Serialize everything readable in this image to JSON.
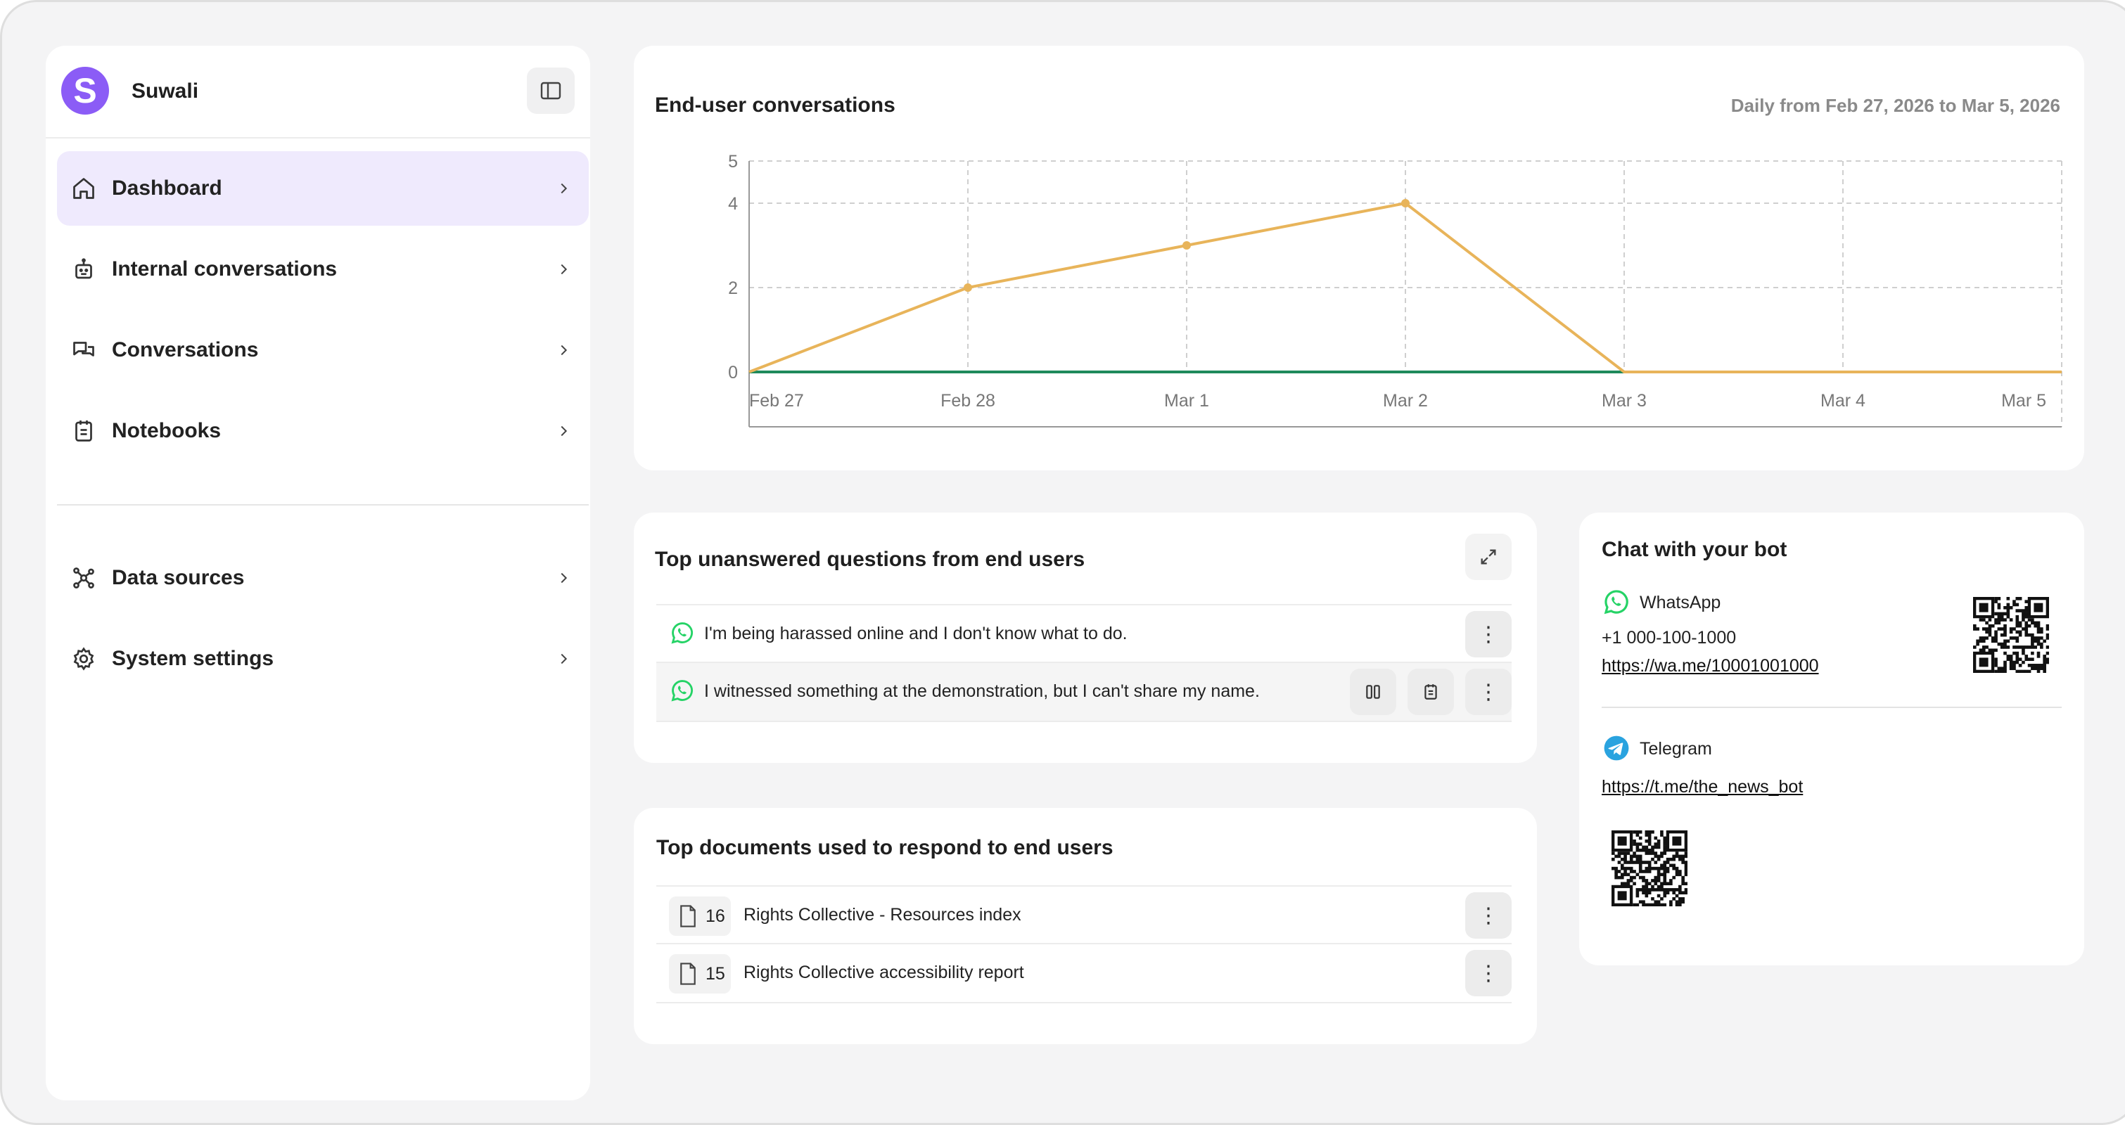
{
  "sidebar": {
    "brand_initial": "S",
    "brand_name": "Suwali",
    "items": [
      {
        "label": "Dashboard"
      },
      {
        "label": "Internal conversations"
      },
      {
        "label": "Conversations"
      },
      {
        "label": "Notebooks"
      },
      {
        "label": "Data sources"
      },
      {
        "label": "System settings"
      }
    ]
  },
  "chart": {
    "title": "End-user conversations",
    "subtitle": "Daily from Feb 27, 2026 to Mar 5, 2026"
  },
  "chart_data": {
    "type": "line",
    "title": "End-user conversations",
    "x": [
      "Feb 27",
      "Feb 28",
      "Mar 1",
      "Mar 2",
      "Mar 3",
      "Mar 4",
      "Mar 5"
    ],
    "y_ticks": [
      0,
      2,
      4,
      5
    ],
    "ylim": [
      0,
      5
    ],
    "grid": true,
    "series": [
      {
        "color": "#e8b45a",
        "values": [
          0,
          2,
          3,
          4,
          0,
          0,
          0
        ]
      },
      {
        "color": "#1f8a5b",
        "values": [
          0,
          0,
          0,
          0,
          0,
          0,
          0
        ]
      }
    ]
  },
  "questions": {
    "title": "Top unanswered questions from end users",
    "items": [
      {
        "channel_icon": "whatsapp-icon",
        "text": "I'm being harassed online and I don't know what to do."
      },
      {
        "channel_icon": "whatsapp-icon",
        "text": "I witnessed something at the demonstration, but I can't share my name."
      }
    ]
  },
  "documents": {
    "title": "Top documents used to respond to end users",
    "items": [
      {
        "count": "16",
        "name": "Rights Collective - Resources index"
      },
      {
        "count": "15",
        "name": "Rights Collective accessibility report"
      }
    ]
  },
  "bot": {
    "title": "Chat with your bot",
    "whatsapp_label": "WhatsApp",
    "whatsapp_phone": "+1 000-100-1000",
    "whatsapp_link": "https://wa.me/10001001000",
    "telegram_label": "Telegram",
    "telegram_link": "https://t.me/the_news_bot"
  },
  "colors": {
    "accent": "#8b5cf6",
    "active_bg": "#efeafd",
    "whatsapp": "#25d366",
    "telegram": "#2aa3df",
    "line_primary": "#e8b45a",
    "line_secondary": "#1f8a5b"
  }
}
